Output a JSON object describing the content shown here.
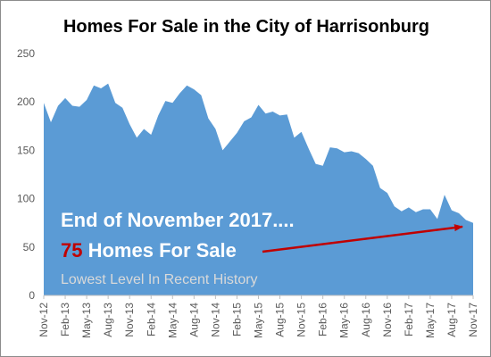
{
  "chart_data": {
    "type": "area",
    "title": "Homes For Sale in the City of Harrisonburg",
    "xlabel": "",
    "ylabel": "",
    "ylim": [
      0,
      250
    ],
    "yticks": [
      0,
      50,
      100,
      150,
      200,
      250
    ],
    "grid": false,
    "area_color": "#5b9bd5",
    "x": [
      "Nov-12",
      "Dec-12",
      "Jan-13",
      "Feb-13",
      "Mar-13",
      "Apr-13",
      "May-13",
      "Jun-13",
      "Jul-13",
      "Aug-13",
      "Sep-13",
      "Oct-13",
      "Nov-13",
      "Dec-13",
      "Jan-14",
      "Feb-14",
      "Mar-14",
      "Apr-14",
      "May-14",
      "Jun-14",
      "Jul-14",
      "Aug-14",
      "Sep-14",
      "Oct-14",
      "Nov-14",
      "Dec-14",
      "Jan-15",
      "Feb-15",
      "Mar-15",
      "Apr-15",
      "May-15",
      "Jun-15",
      "Jul-15",
      "Aug-15",
      "Sep-15",
      "Oct-15",
      "Nov-15",
      "Dec-15",
      "Jan-16",
      "Feb-16",
      "Mar-16",
      "Apr-16",
      "May-16",
      "Jun-16",
      "Jul-16",
      "Aug-16",
      "Sep-16",
      "Oct-16",
      "Nov-16",
      "Dec-16",
      "Jan-17",
      "Feb-17",
      "Mar-17",
      "Apr-17",
      "May-17",
      "Jun-17",
      "Jul-17",
      "Aug-17",
      "Sep-17",
      "Oct-17",
      "Nov-17"
    ],
    "x_tick_labels": [
      "Nov-12",
      "Feb-13",
      "May-13",
      "Aug-13",
      "Nov-13",
      "Feb-14",
      "May-14",
      "Aug-14",
      "Nov-14",
      "Feb-15",
      "May-15",
      "Aug-15",
      "Nov-15",
      "Feb-16",
      "May-16",
      "Aug-16",
      "Nov-16",
      "Feb-17",
      "May-17",
      "Aug-17",
      "Nov-17"
    ],
    "values": [
      199,
      179,
      196,
      204,
      196,
      195,
      202,
      217,
      214,
      219,
      199,
      194,
      177,
      163,
      172,
      166,
      186,
      201,
      199,
      209,
      217,
      213,
      207,
      183,
      172,
      150,
      159,
      168,
      180,
      184,
      197,
      188,
      190,
      186,
      187,
      163,
      169,
      152,
      136,
      134,
      153,
      152,
      148,
      149,
      147,
      141,
      134,
      111,
      106,
      92,
      87,
      91,
      86,
      89,
      89,
      79,
      104,
      88,
      85,
      78,
      75
    ]
  },
  "annotation": {
    "line1": "End of November 2017....",
    "line2_number": "75",
    "line2_text": " Homes For Sale",
    "line3": "Lowest Level In Recent History",
    "arrow_color": "#c00000"
  }
}
